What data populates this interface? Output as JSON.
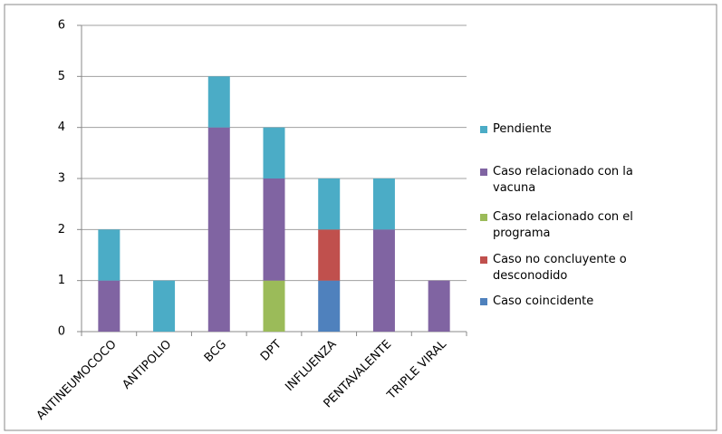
{
  "chart_data": {
    "type": "stacked_bar",
    "categories": [
      "ANTINEUMOCOCO",
      "ANTIPOLIO",
      "BCG",
      "DPT",
      "INFLUENZA",
      "PENTAVALENTE",
      "TRIPLE VIRAL"
    ],
    "series": [
      {
        "name": "Caso coincidente",
        "color": "#4f81bd",
        "values": [
          0,
          0,
          0,
          0,
          1,
          0,
          0
        ]
      },
      {
        "name": "Caso no concluyente o desconodido",
        "color": "#c0504d",
        "values": [
          0,
          0,
          0,
          0,
          1,
          0,
          0
        ]
      },
      {
        "name": "Caso relacionado con el programa",
        "color": "#9bbb59",
        "values": [
          0,
          0,
          0,
          1,
          0,
          0,
          0
        ]
      },
      {
        "name": "Caso relacionado con la vacuna",
        "color": "#8064a2",
        "values": [
          1,
          0,
          4,
          2,
          0,
          2,
          1
        ]
      },
      {
        "name": "Pendiente",
        "color": "#4bacc6",
        "values": [
          1,
          1,
          1,
          1,
          1,
          1,
          0
        ]
      }
    ],
    "ylim": [
      0,
      6
    ],
    "yticks": [
      0,
      1,
      2,
      3,
      4,
      5,
      6
    ],
    "grid": true,
    "legend": "right"
  }
}
